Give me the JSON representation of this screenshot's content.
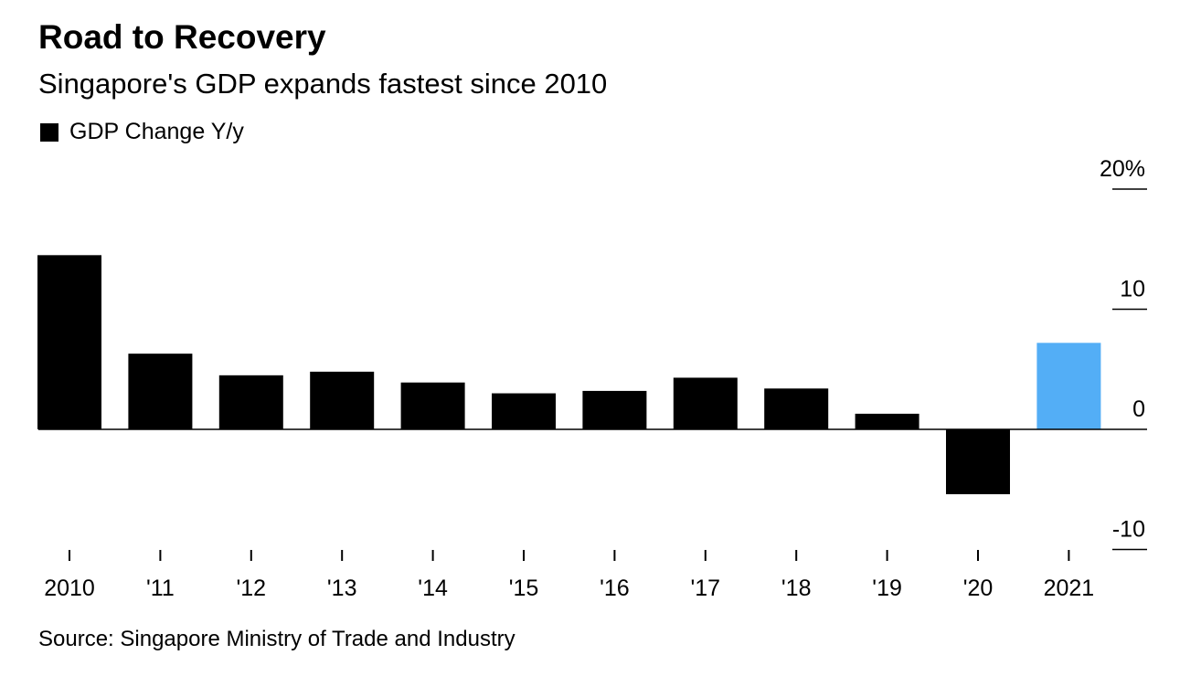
{
  "chart_data": {
    "type": "bar",
    "title": "Road to Recovery",
    "subtitle": "Singapore's GDP expands fastest since 2010",
    "legend": [
      {
        "name": "GDP Change Y/y",
        "color": "#000000"
      }
    ],
    "legend_placement": "top-left",
    "categories": [
      "2010",
      "'11",
      "'12",
      "'13",
      "'14",
      "'15",
      "'16",
      "'17",
      "'18",
      "'19",
      "'20",
      "2021"
    ],
    "series": [
      {
        "name": "GDP Change Y/y",
        "values": [
          14.5,
          6.3,
          4.5,
          4.8,
          3.9,
          3.0,
          3.2,
          4.3,
          3.4,
          1.3,
          -5.4,
          7.2
        ]
      }
    ],
    "highlight": {
      "category": "2021",
      "color": "#53aef6"
    },
    "bar_color": "#000000",
    "ylim": [
      -10,
      20
    ],
    "yticks": [
      20,
      10,
      0,
      -10
    ],
    "ytick_labels": [
      "20%",
      "10",
      "0",
      "-10"
    ],
    "y_axis_side": "right",
    "grid": false,
    "source": "Source: Singapore Ministry of Trade and Industry"
  }
}
